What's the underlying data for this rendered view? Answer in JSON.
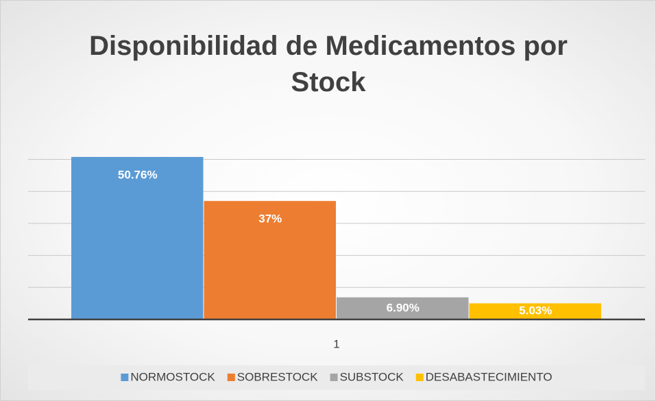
{
  "chart_data": {
    "type": "bar",
    "title": "Disponibilidad de Medicamentos por Stock",
    "categories": [
      "1"
    ],
    "series": [
      {
        "name": "NORMOSTOCK",
        "color": "#5b9bd5",
        "values": [
          50.76
        ],
        "value_labels": [
          "50.76%"
        ]
      },
      {
        "name": "SOBRESTOCK",
        "color": "#ed7d31",
        "values": [
          37
        ],
        "value_labels": [
          "37%"
        ]
      },
      {
        "name": "SUBSTOCK",
        "color": "#a5a5a5",
        "values": [
          6.9
        ],
        "value_labels": [
          "6.90%"
        ]
      },
      {
        "name": "DESABASTECIMIENTO",
        "color": "#ffc000",
        "values": [
          5.03
        ],
        "value_labels": [
          "5.03%"
        ]
      }
    ],
    "ylim": [
      0,
      60
    ],
    "yticks": [
      0,
      10,
      20,
      30,
      40,
      50,
      60
    ],
    "grid": true,
    "legend": "bottom"
  }
}
